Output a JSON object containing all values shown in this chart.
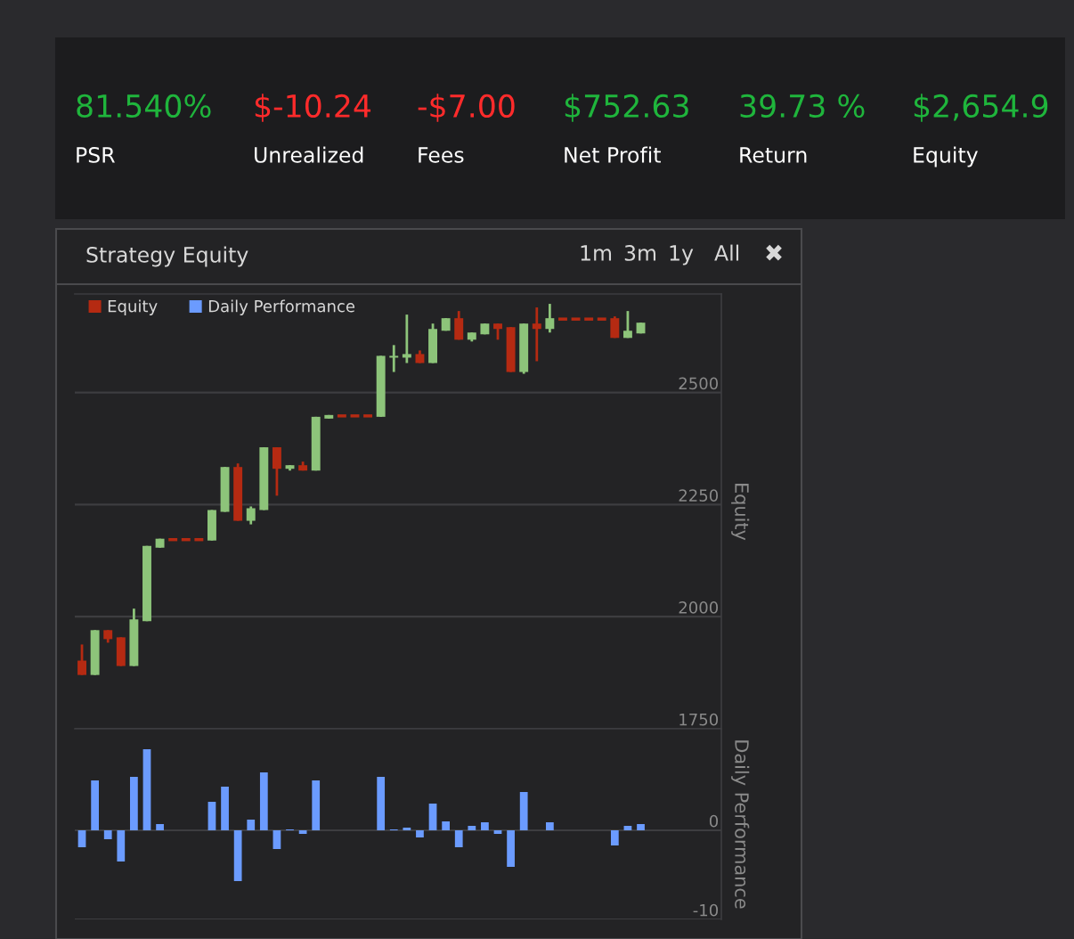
{
  "chart_data": [
    {
      "type": "other",
      "annotations": [
        "81.540%",
        "PSR",
        "$-10.24",
        "Unrealized",
        "-$7.00",
        "Fees",
        "$752.63",
        "Net Profit",
        "39.73 %",
        "Return",
        "$2,654.9",
        "Equity"
      ],
      "colors": [
        "#1fb53c",
        "#ffffff",
        "#ff2b2b",
        "#ffffff",
        "#ff2b2b",
        "#ffffff",
        "#1fb53c",
        "#ffffff",
        "#1fb53c",
        "#ffffff",
        "#1fb53c",
        "#ffffff"
      ]
    },
    {
      "type": "candlestick",
      "title": "Strategy Equity",
      "annotations": [
        "1m",
        "3m",
        "1y",
        "All",
        "✖"
      ],
      "ylabel": "Equity",
      "ylim": [
        1750,
        2720
      ],
      "yticks": [
        1750,
        2000,
        2250,
        2500
      ],
      "grid": "y",
      "tick_labels": "y",
      "legend": "top left",
      "categories": [
        null,
        null,
        null,
        null,
        null,
        null,
        null,
        null,
        null,
        null,
        null,
        null,
        null,
        null,
        null,
        null,
        null,
        null,
        null,
        null,
        null,
        null,
        null,
        null,
        null,
        null,
        null,
        null,
        null,
        null,
        null,
        null,
        null,
        null,
        null,
        null,
        null,
        null,
        null,
        null,
        null,
        null,
        null,
        null
      ],
      "series": [
        {
          "name": "Equity",
          "ohlc": [
            [
              1902,
              1938,
              1870,
              1870
            ],
            [
              1870,
              1970,
              1870,
              1970
            ],
            [
              1970,
              1970,
              1942,
              1950
            ],
            [
              1954,
              1954,
              1890,
              1890
            ],
            [
              1890,
              2018,
              1890,
              1994
            ],
            [
              1990,
              2158,
              1990,
              2158
            ],
            [
              2154,
              2174,
              2154,
              2174
            ],
            [
              2172,
              2172,
              2172,
              2172
            ],
            [
              2172,
              2172,
              2172,
              2172
            ],
            [
              2172,
              2172,
              2172,
              2172
            ],
            [
              2170,
              2238,
              2170,
              2238
            ],
            [
              2234,
              2334,
              2234,
              2334
            ],
            [
              2334,
              2342,
              2214,
              2214
            ],
            [
              2214,
              2246,
              2206,
              2242
            ],
            [
              2238,
              2378,
              2238,
              2378
            ],
            [
              2378,
              2378,
              2270,
              2330
            ],
            [
              2330,
              2338,
              2326,
              2338
            ],
            [
              2338,
              2346,
              2326,
              2326
            ],
            [
              2326,
              2446,
              2326,
              2446
            ],
            [
              2442,
              2450,
              2442,
              2450
            ],
            [
              2448,
              2448,
              2448,
              2448
            ],
            [
              2448,
              2448,
              2448,
              2448
            ],
            [
              2448,
              2448,
              2448,
              2448
            ],
            [
              2446,
              2582,
              2446,
              2582
            ],
            [
              2578,
              2606,
              2546,
              2582
            ],
            [
              2578,
              2674,
              2566,
              2586
            ],
            [
              2586,
              2594,
              2566,
              2566
            ],
            [
              2566,
              2654,
              2566,
              2642
            ],
            [
              2638,
              2666,
              2638,
              2666
            ],
            [
              2666,
              2682,
              2618,
              2618
            ],
            [
              2618,
              2634,
              2614,
              2634
            ],
            [
              2630,
              2654,
              2630,
              2654
            ],
            [
              2654,
              2654,
              2618,
              2642
            ],
            [
              2646,
              2646,
              2546,
              2546
            ],
            [
              2546,
              2654,
              2542,
              2654
            ],
            [
              2654,
              2690,
              2570,
              2642
            ],
            [
              2642,
              2698,
              2634,
              2666
            ],
            [
              2664,
              2664,
              2664,
              2664
            ],
            [
              2664,
              2664,
              2664,
              2664
            ],
            [
              2664,
              2664,
              2664,
              2664
            ],
            [
              2664,
              2664,
              2664,
              2664
            ],
            [
              2666,
              2670,
              2622,
              2622
            ],
            [
              2622,
              2682,
              2622,
              2638
            ],
            [
              2632,
              2656,
              2632,
              2656
            ]
          ],
          "colors": [
            "#b52a12",
            "#8dc47a",
            "#b52a12",
            "#b52a12",
            "#8dc47a",
            "#8dc47a",
            "#8dc47a",
            "#b52a12",
            "#b52a12",
            "#b52a12",
            "#8dc47a",
            "#8dc47a",
            "#b52a12",
            "#8dc47a",
            "#8dc47a",
            "#b52a12",
            "#8dc47a",
            "#b52a12",
            "#8dc47a",
            "#8dc47a",
            "#b52a12",
            "#b52a12",
            "#b52a12",
            "#8dc47a",
            "#8dc47a",
            "#8dc47a",
            "#b52a12",
            "#8dc47a",
            "#8dc47a",
            "#b52a12",
            "#8dc47a",
            "#8dc47a",
            "#b52a12",
            "#b52a12",
            "#8dc47a",
            "#b52a12",
            "#8dc47a",
            "#b52a12",
            "#b52a12",
            "#b52a12",
            "#b52a12",
            "#b52a12",
            "#8dc47a",
            "#8dc47a"
          ]
        }
      ]
    },
    {
      "type": "bar",
      "ylabel": "Daily Performance",
      "ylim": [
        -10,
        11.4
      ],
      "yticks": [
        -10,
        0
      ],
      "grid": "y",
      "tick_labels": "y",
      "categories": [
        null,
        null,
        null,
        null,
        null,
        null,
        null,
        null,
        null,
        null,
        null,
        null,
        null,
        null,
        null,
        null,
        null,
        null,
        null,
        null,
        null,
        null,
        null,
        null,
        null,
        null,
        null,
        null,
        null,
        null,
        null,
        null,
        null,
        null,
        null,
        null,
        null,
        null,
        null,
        null,
        null,
        null,
        null,
        null
      ],
      "series": [
        {
          "name": "Daily Performance",
          "color": "#6b9bff",
          "values": [
            -1.9,
            5.6,
            -1.0,
            -3.5,
            6.0,
            9.1,
            0.7,
            null,
            null,
            null,
            3.2,
            4.9,
            -5.7,
            1.2,
            6.5,
            -2.1,
            0.1,
            -0.4,
            5.6,
            null,
            null,
            null,
            null,
            6.0,
            0.1,
            0.3,
            -0.8,
            3.0,
            1.0,
            -1.9,
            0.5,
            0.9,
            -0.4,
            -4.1,
            4.3,
            null,
            0.9,
            null,
            null,
            null,
            null,
            -1.7,
            0.5,
            0.7
          ]
        }
      ]
    }
  ]
}
